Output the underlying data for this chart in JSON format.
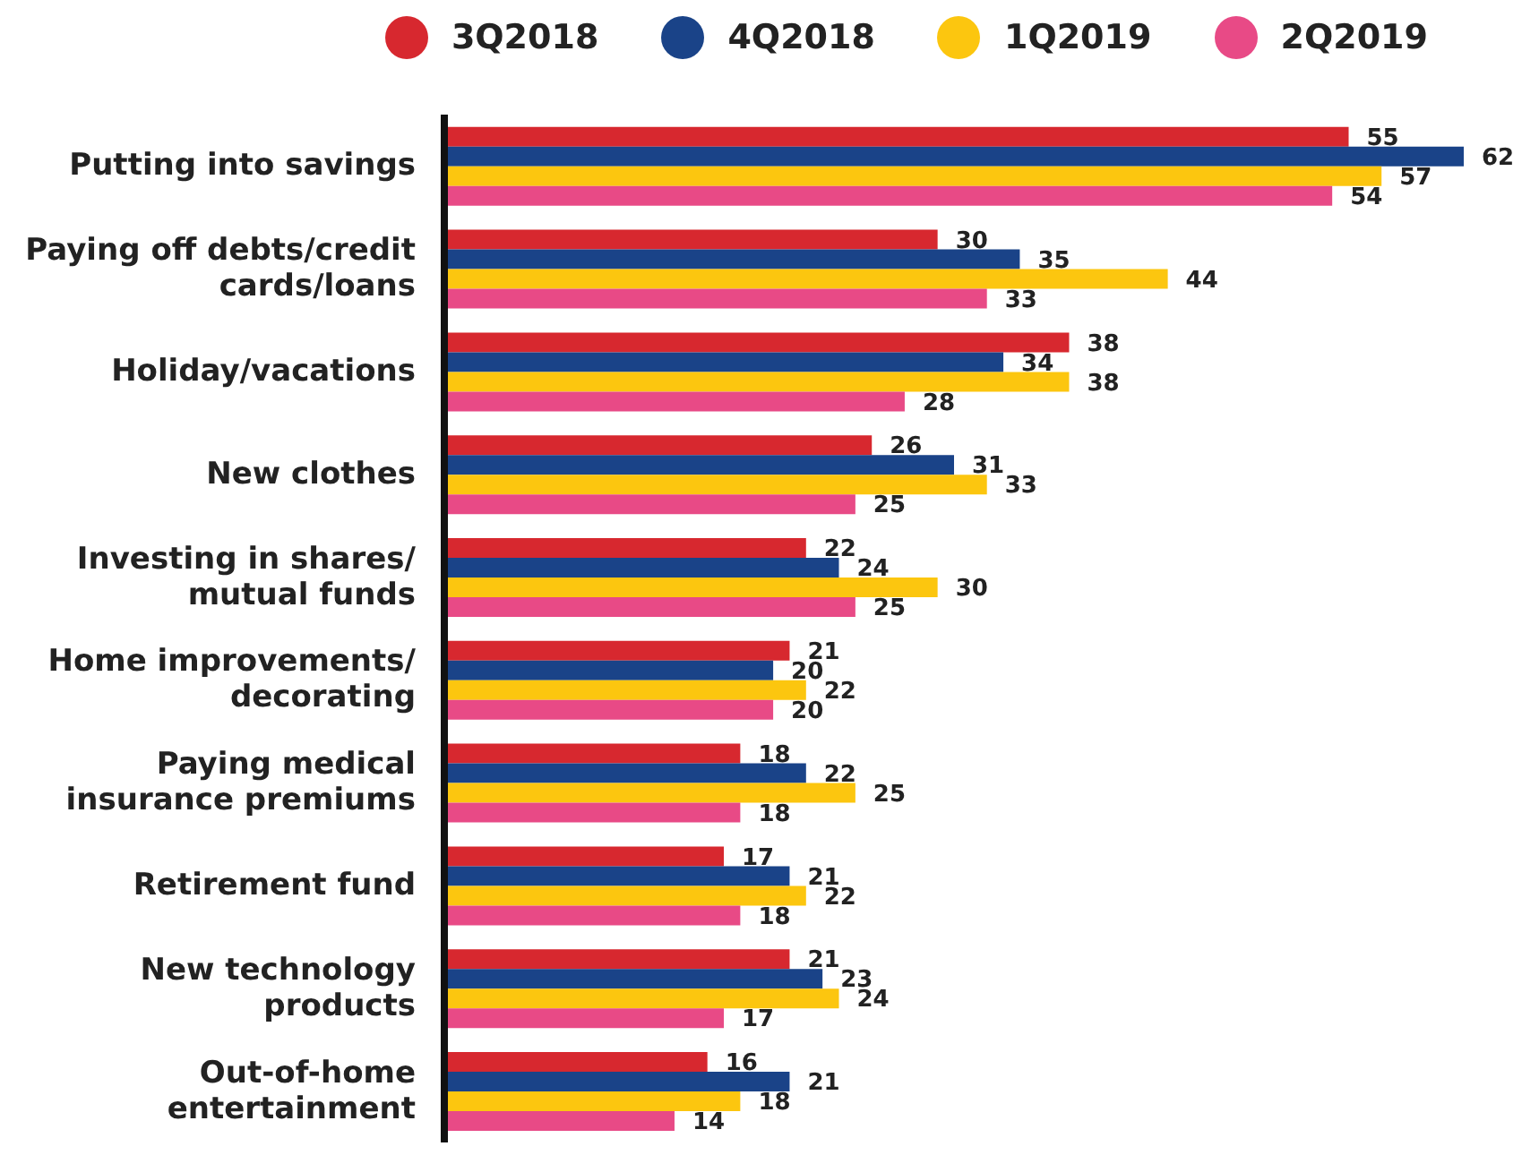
{
  "chart_data": {
    "type": "bar",
    "orientation": "horizontal",
    "data_labels": true,
    "legend": "top",
    "categories": [
      "Putting into savings",
      "Paying off debts/credit cards/loans",
      "Holiday/vacations",
      "New clothes",
      "Investing in shares/ mutual funds",
      "Home improvements/ decorating",
      "Paying medical insurance premiums",
      "Retirement fund",
      "New technology products",
      "Out-of-home entertainment"
    ],
    "series": [
      {
        "name": "3Q2018",
        "color": "#d7282f",
        "values": [
          55,
          30,
          38,
          26,
          22,
          21,
          18,
          17,
          21,
          16
        ]
      },
      {
        "name": "4Q2018",
        "color": "#1a4388",
        "values": [
          62,
          35,
          34,
          31,
          24,
          20,
          22,
          21,
          23,
          21
        ]
      },
      {
        "name": "1Q2019",
        "color": "#fcc60f",
        "values": [
          57,
          44,
          38,
          33,
          30,
          22,
          25,
          22,
          24,
          18
        ]
      },
      {
        "name": "2Q2019",
        "color": "#e84a86",
        "values": [
          54,
          33,
          28,
          25,
          25,
          20,
          18,
          18,
          17,
          14
        ]
      }
    ]
  }
}
